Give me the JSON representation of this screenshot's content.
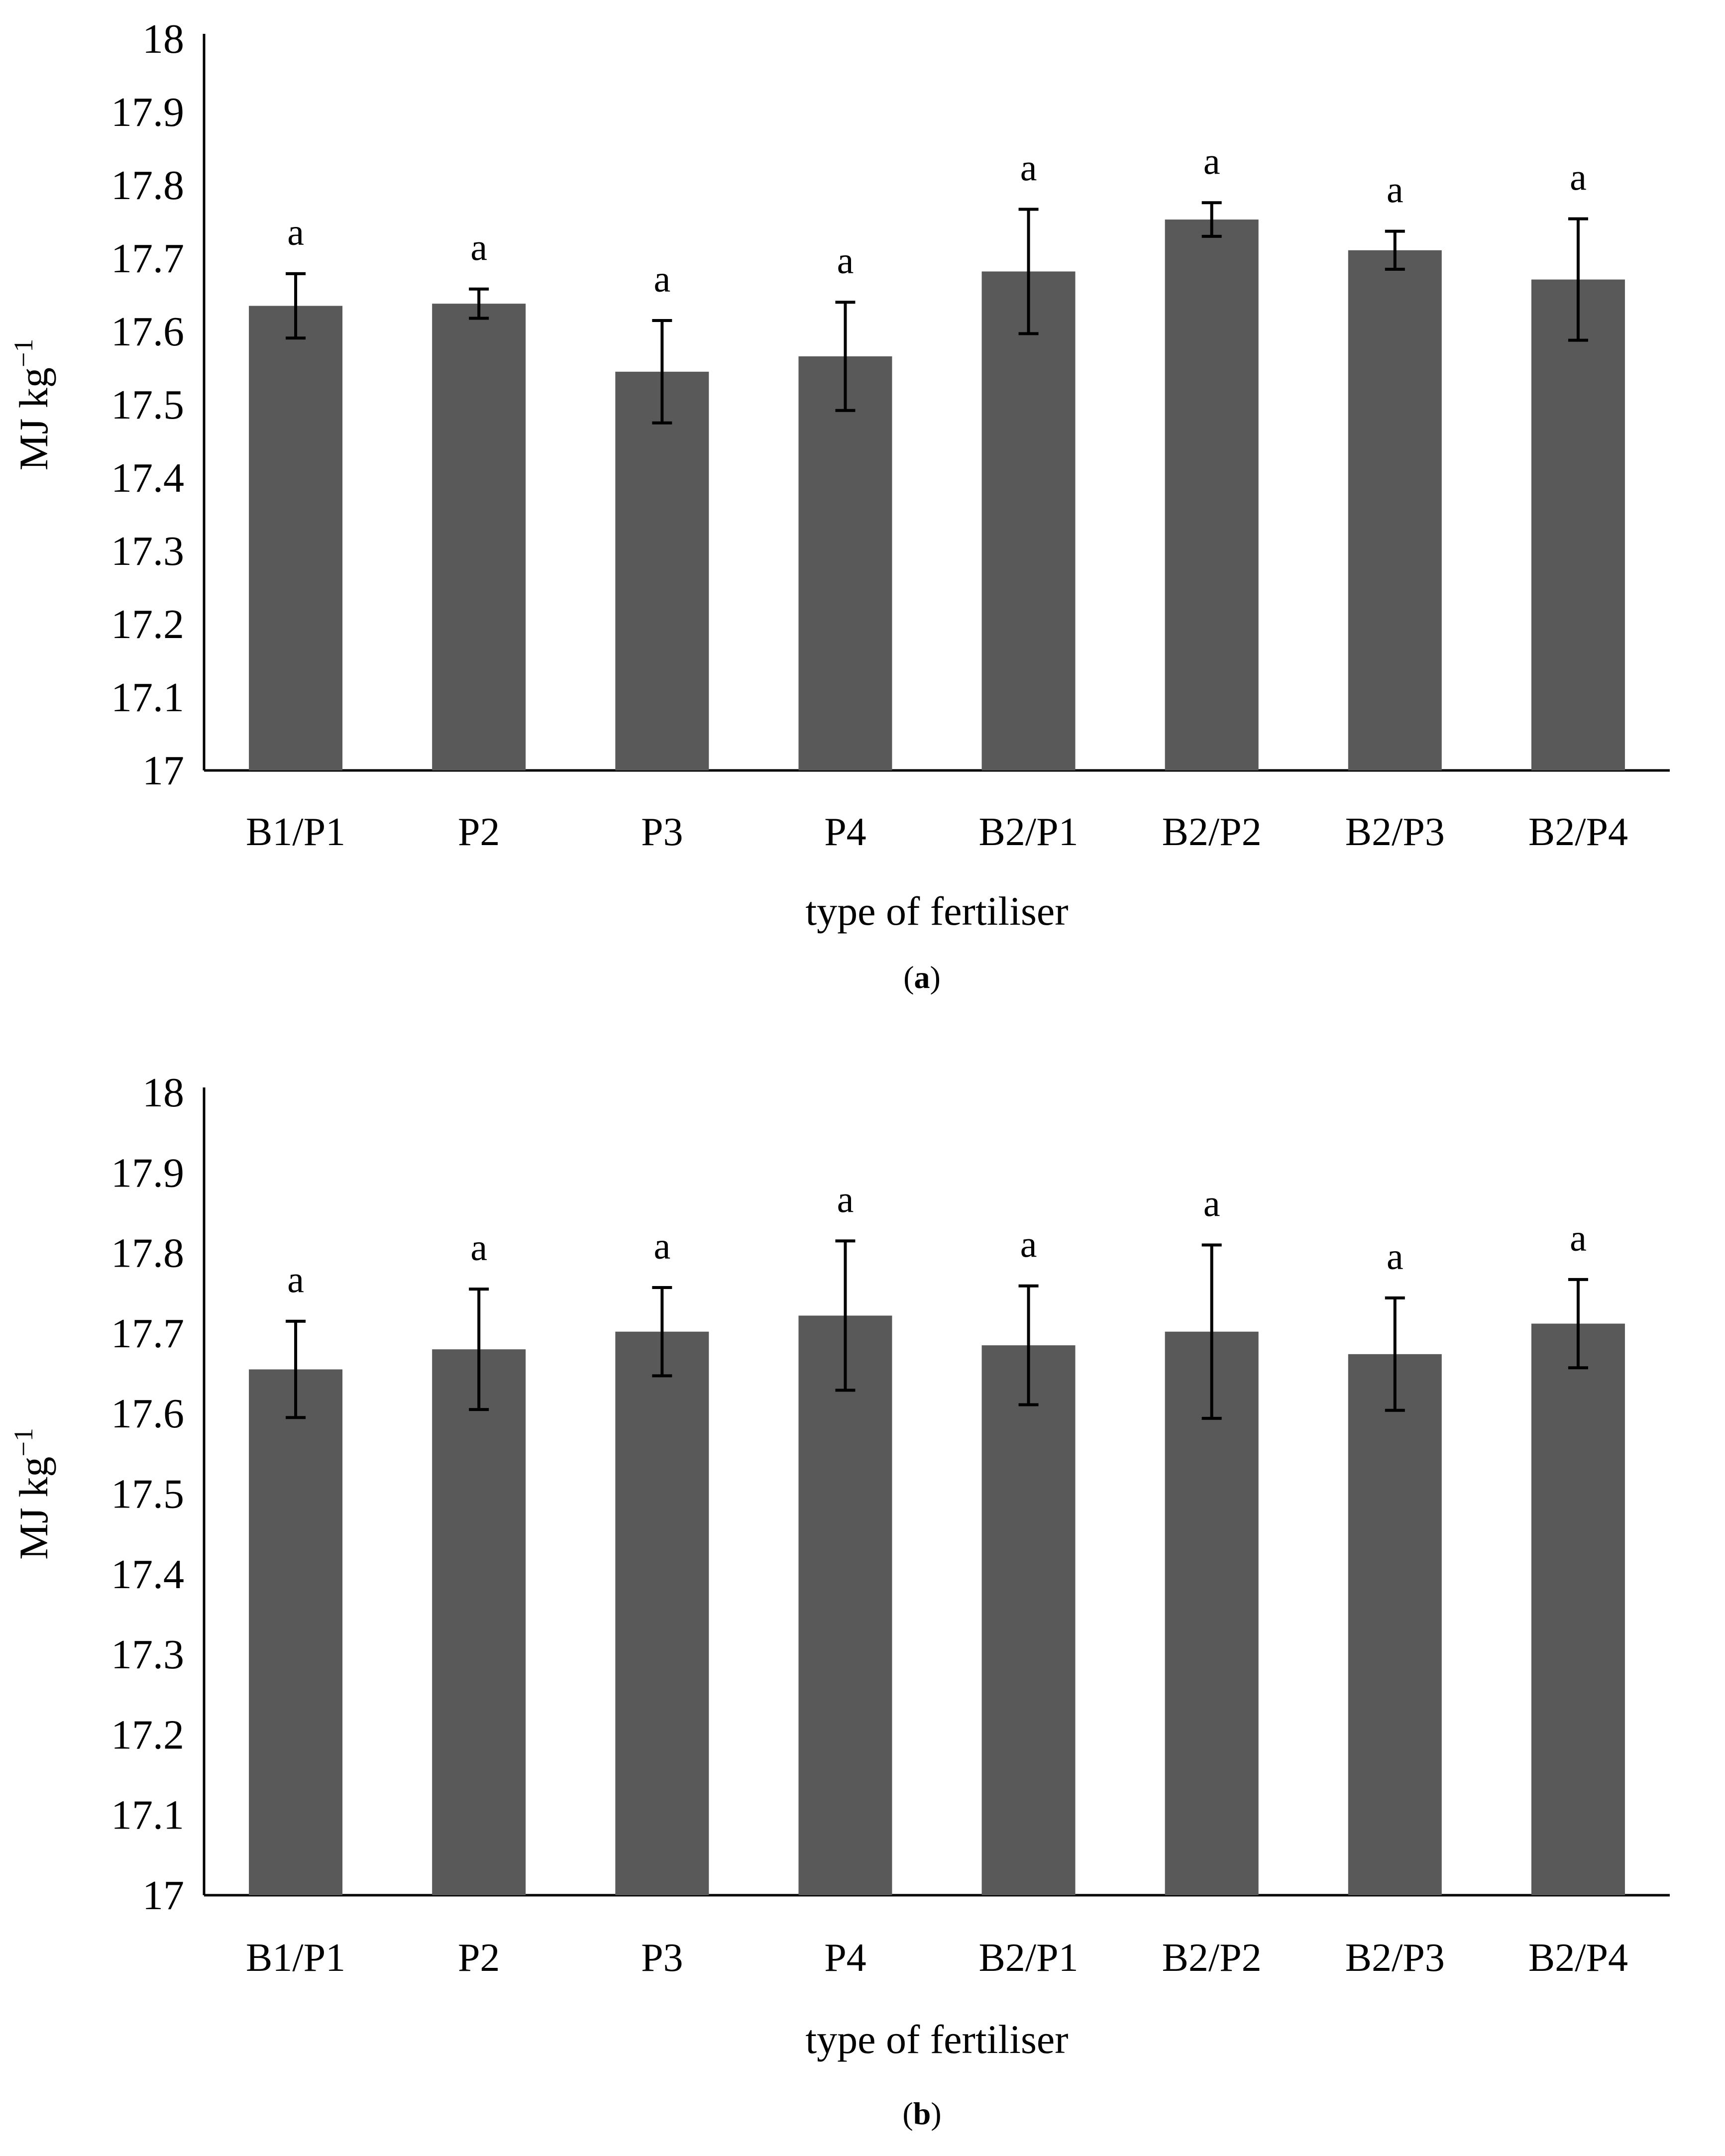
{
  "figure": {
    "bar_color": "#595959",
    "axis_color": "#000000",
    "error_color": "#000000"
  },
  "chart_data": [
    {
      "type": "bar",
      "panel": "a",
      "panel_label": "(a)",
      "title": "",
      "xlabel": "type of fertiliser",
      "ylabel": "MJ kg⁻¹",
      "ylabel_base": "MJ kg",
      "ylabel_sup": "−1",
      "ylim": [
        17,
        18
      ],
      "yticks": [
        17,
        17.1,
        17.2,
        17.3,
        17.4,
        17.5,
        17.6,
        17.7,
        17.8,
        17.9,
        18
      ],
      "ytick_labels": [
        "17",
        "17.1",
        "17.2",
        "17.3",
        "17.4",
        "17.5",
        "17.6",
        "17.7",
        "17.8",
        "17.9",
        "18"
      ],
      "grid": false,
      "categories": [
        "B1/P1",
        "P2",
        "P3",
        "P4",
        "B2/P1",
        "B2/P2",
        "B2/P3",
        "B2/P4"
      ],
      "values": [
        17.635,
        17.638,
        17.545,
        17.566,
        17.682,
        17.753,
        17.711,
        17.671
      ],
      "errors": [
        0.044,
        0.02,
        0.07,
        0.074,
        0.085,
        0.023,
        0.026,
        0.083
      ],
      "labels": [
        "a",
        "a",
        "a",
        "a",
        "a",
        "a",
        "a",
        "a"
      ]
    },
    {
      "type": "bar",
      "panel": "b",
      "panel_label": "(b)",
      "title": "",
      "xlabel": "type of fertiliser",
      "ylabel": "MJ kg⁻¹",
      "ylabel_base": "MJ kg",
      "ylabel_sup": "−1",
      "ylim": [
        17,
        18
      ],
      "yticks": [
        17,
        17.1,
        17.2,
        17.3,
        17.4,
        17.5,
        17.6,
        17.7,
        17.8,
        17.9,
        18
      ],
      "ytick_labels": [
        "17",
        "17.1",
        "17.2",
        "17.3",
        "17.4",
        "17.5",
        "17.6",
        "17.7",
        "17.8",
        "17.9",
        "18"
      ],
      "grid": false,
      "categories": [
        "B1/P1",
        "P2",
        "P3",
        "P4",
        "B2/P1",
        "B2/P2",
        "B2/P3",
        "B2/P4"
      ],
      "values": [
        17.655,
        17.68,
        17.702,
        17.722,
        17.685,
        17.702,
        17.674,
        17.712
      ],
      "errors": [
        0.06,
        0.075,
        0.055,
        0.093,
        0.074,
        0.108,
        0.07,
        0.055
      ],
      "labels": [
        "a",
        "a",
        "a",
        "a",
        "a",
        "a",
        "a",
        "a"
      ]
    }
  ]
}
